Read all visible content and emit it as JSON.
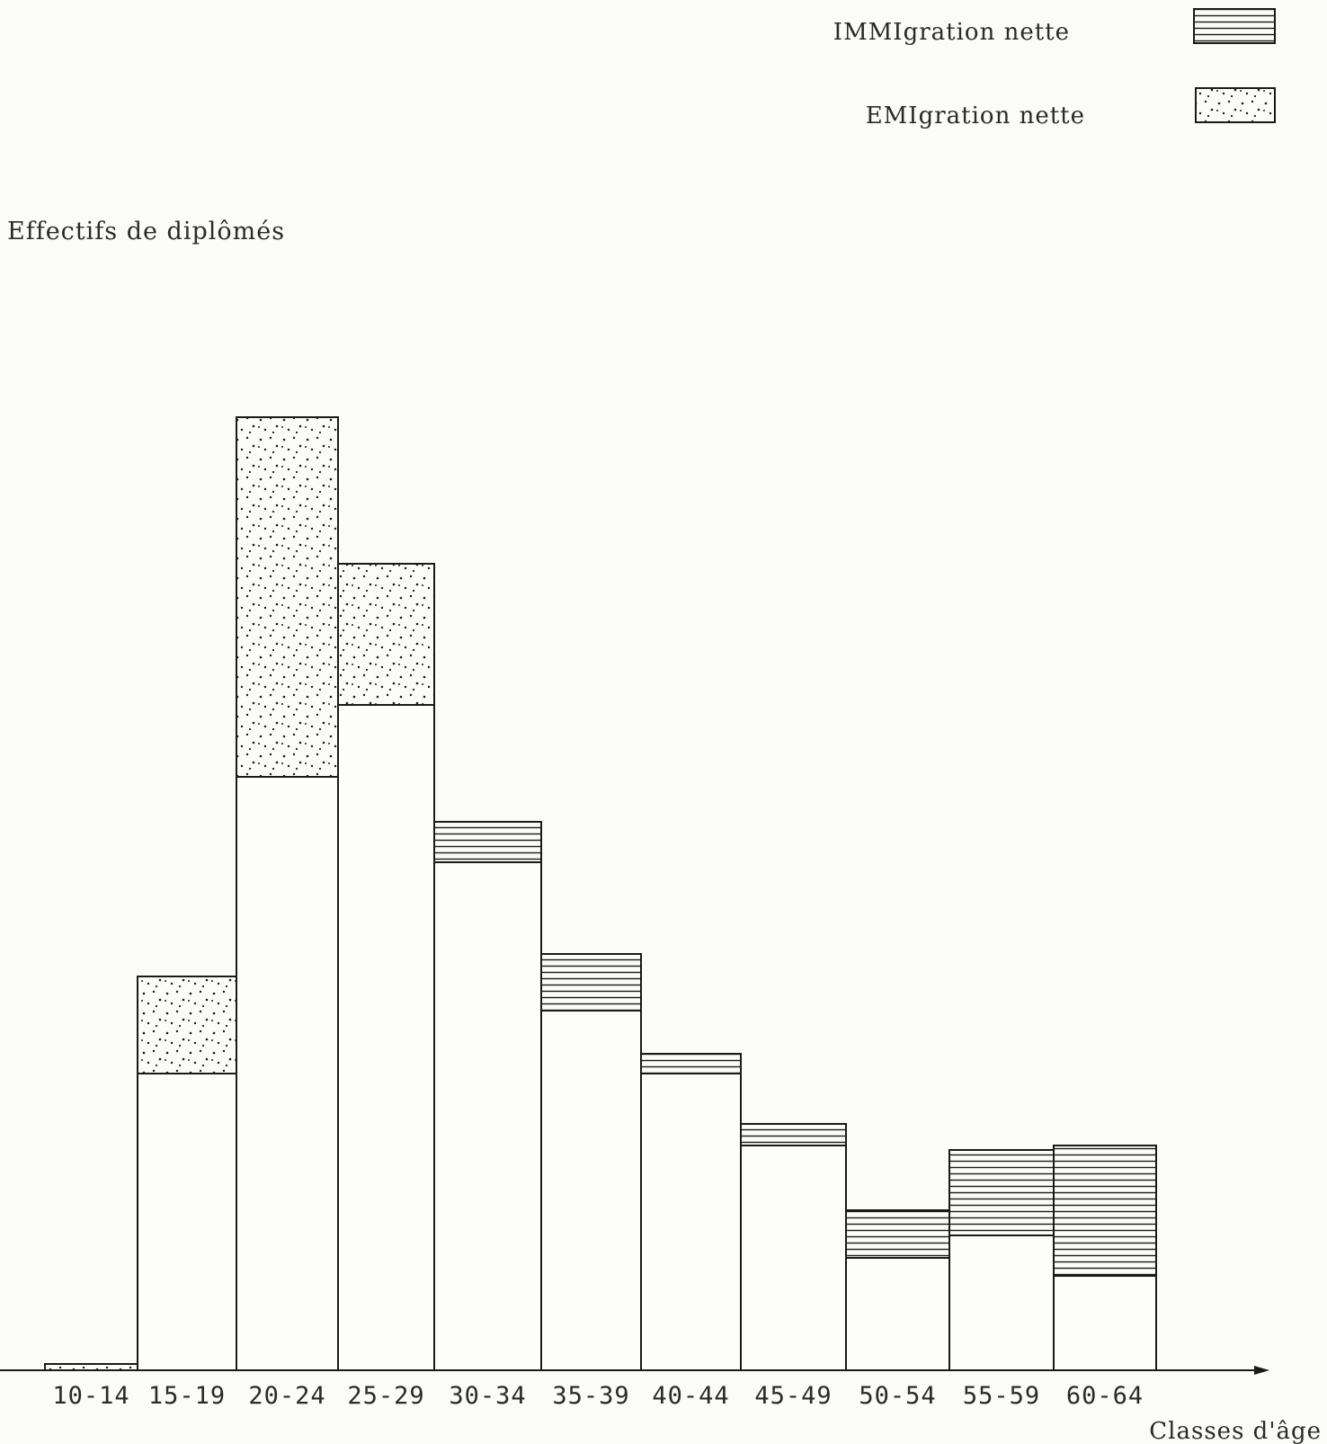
{
  "chart_data": {
    "type": "bar",
    "title": "",
    "ylabel": "Effectifs de diplômés",
    "xlabel": "Classes d'âge",
    "categories": [
      "10-14",
      "15-19",
      "20-24",
      "25-29",
      "30-34",
      "35-39",
      "40-44",
      "45-49",
      "50-54",
      "55-59",
      "60-64"
    ],
    "base": [
      0,
      330,
      660,
      740,
      565,
      400,
      330,
      250,
      125,
      150,
      105
    ],
    "top": [
      7,
      438,
      1060,
      897,
      610,
      463,
      352,
      274,
      178,
      245,
      250
    ],
    "series": [
      {
        "name": "IMMIgration nette",
        "pattern": "horizontal-lines",
        "values": [
          0,
          0,
          0,
          0,
          45,
          63,
          22,
          24,
          53,
          95,
          145
        ]
      },
      {
        "name": "EMIgration nette",
        "pattern": "dots",
        "values": [
          7,
          108,
          400,
          157,
          0,
          0,
          0,
          0,
          0,
          0,
          0
        ]
      }
    ],
    "legend": {
      "position": "top-right",
      "items": [
        {
          "label": "IMMIgration nette",
          "pattern": "horizontal-lines"
        },
        {
          "label": "EMIgration nette",
          "pattern": "dots"
        }
      ]
    },
    "colors": {
      "line": "#1a1a1a",
      "background": "#fbfbf9"
    }
  }
}
